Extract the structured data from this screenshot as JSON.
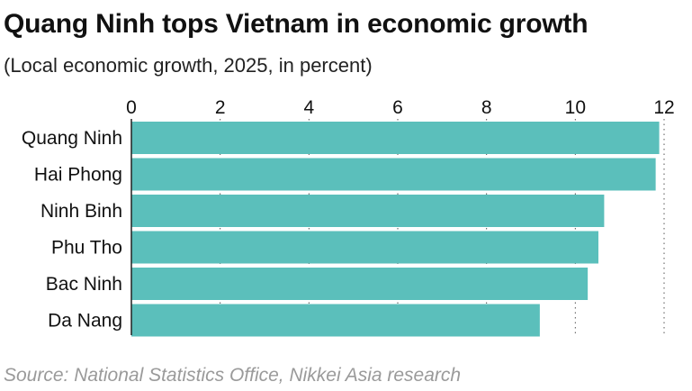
{
  "header": {
    "title": "Quang Ninh tops Vietnam in economic growth",
    "subtitle": "(Local economic growth, 2025, in percent)"
  },
  "footer": {
    "source": "Source: National Statistics Office, Nikkei Asia research"
  },
  "colors": {
    "bar": "#5bbfbb",
    "axis": "#222222",
    "grid": "#555555",
    "text": "#111111"
  },
  "chart_data": {
    "type": "bar",
    "orientation": "horizontal",
    "categories": [
      "Quang Ninh",
      "Hai Phong",
      "Ninh Binh",
      "Phu Tho",
      "Bac Ninh",
      "Da Nang"
    ],
    "values": [
      11.89,
      11.81,
      10.65,
      10.52,
      10.28,
      9.2
    ],
    "xlim": [
      0,
      12
    ],
    "ticks": [
      0,
      2,
      4,
      6,
      8,
      10,
      12
    ],
    "tick_labels": [
      "0",
      "2",
      "4",
      "6",
      "8",
      "10",
      "12"
    ],
    "grid": true,
    "legend": "none"
  }
}
